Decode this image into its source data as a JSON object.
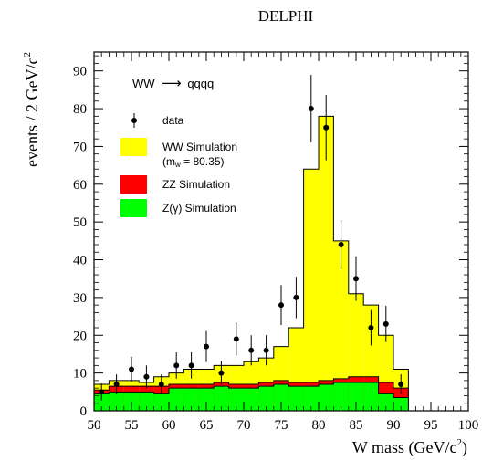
{
  "chart_data": {
    "type": "bar",
    "title": "DELPHI",
    "xlabel": "W mass (GeV/c",
    "xlabel_sup": "2",
    "xlabel_close": ")",
    "ylabel": "events / 2 GeV/c",
    "ylabel_sup": "2",
    "xlim": [
      50,
      100
    ],
    "ylim": [
      0,
      95
    ],
    "x_ticks": [
      "50",
      "55",
      "60",
      "65",
      "70",
      "75",
      "80",
      "85",
      "90",
      "95",
      "100"
    ],
    "y_ticks": [
      "0",
      "10",
      "20",
      "30",
      "40",
      "50",
      "60",
      "70",
      "80",
      "90"
    ],
    "bin_edges": [
      50,
      52,
      54,
      56,
      58,
      60,
      62,
      64,
      66,
      68,
      70,
      72,
      74,
      76,
      78,
      80,
      82,
      84,
      86,
      88,
      90,
      92
    ],
    "process_label": "WW",
    "process_arrow": "⟶",
    "process_final": "qqqq",
    "series": [
      {
        "name": "WW Simulation",
        "name_line2": "(m",
        "name_line2_sub": "w",
        "name_line2_rest": " = 80.35)",
        "color": "#ffff00",
        "values": [
          7,
          8,
          8,
          7.5,
          9,
          10,
          11,
          11,
          12,
          12,
          13,
          14,
          17,
          22,
          64,
          78,
          45,
          31,
          28,
          20,
          11
        ]
      },
      {
        "name": "ZZ Simulation",
        "color": "#ff0000",
        "values": [
          5.5,
          6.5,
          6.5,
          6.5,
          6.5,
          7,
          7,
          7,
          7.5,
          7,
          7,
          7.5,
          8,
          7.5,
          7.5,
          8,
          8.5,
          9,
          9,
          7.5,
          6
        ]
      },
      {
        "name": "Z(γ) Simulation",
        "color": "#00ff00",
        "values": [
          4.5,
          5,
          5,
          5,
          4.5,
          6,
          6,
          6,
          6.5,
          6,
          6,
          6.5,
          7,
          6.5,
          6.5,
          7,
          7.5,
          7.5,
          7.5,
          4.5,
          3.5
        ]
      }
    ],
    "data_series": {
      "name": "data",
      "x": [
        51,
        53,
        55,
        57,
        59,
        61,
        63,
        65,
        67,
        69,
        71,
        73,
        75,
        77,
        79,
        81,
        83,
        85,
        87,
        89,
        91
      ],
      "y": [
        5,
        7,
        11,
        9,
        7,
        12,
        12,
        17,
        10,
        19,
        16,
        16,
        28,
        30,
        80,
        75,
        44,
        35,
        22,
        23,
        7
      ]
    },
    "legend_position": "top-left"
  }
}
